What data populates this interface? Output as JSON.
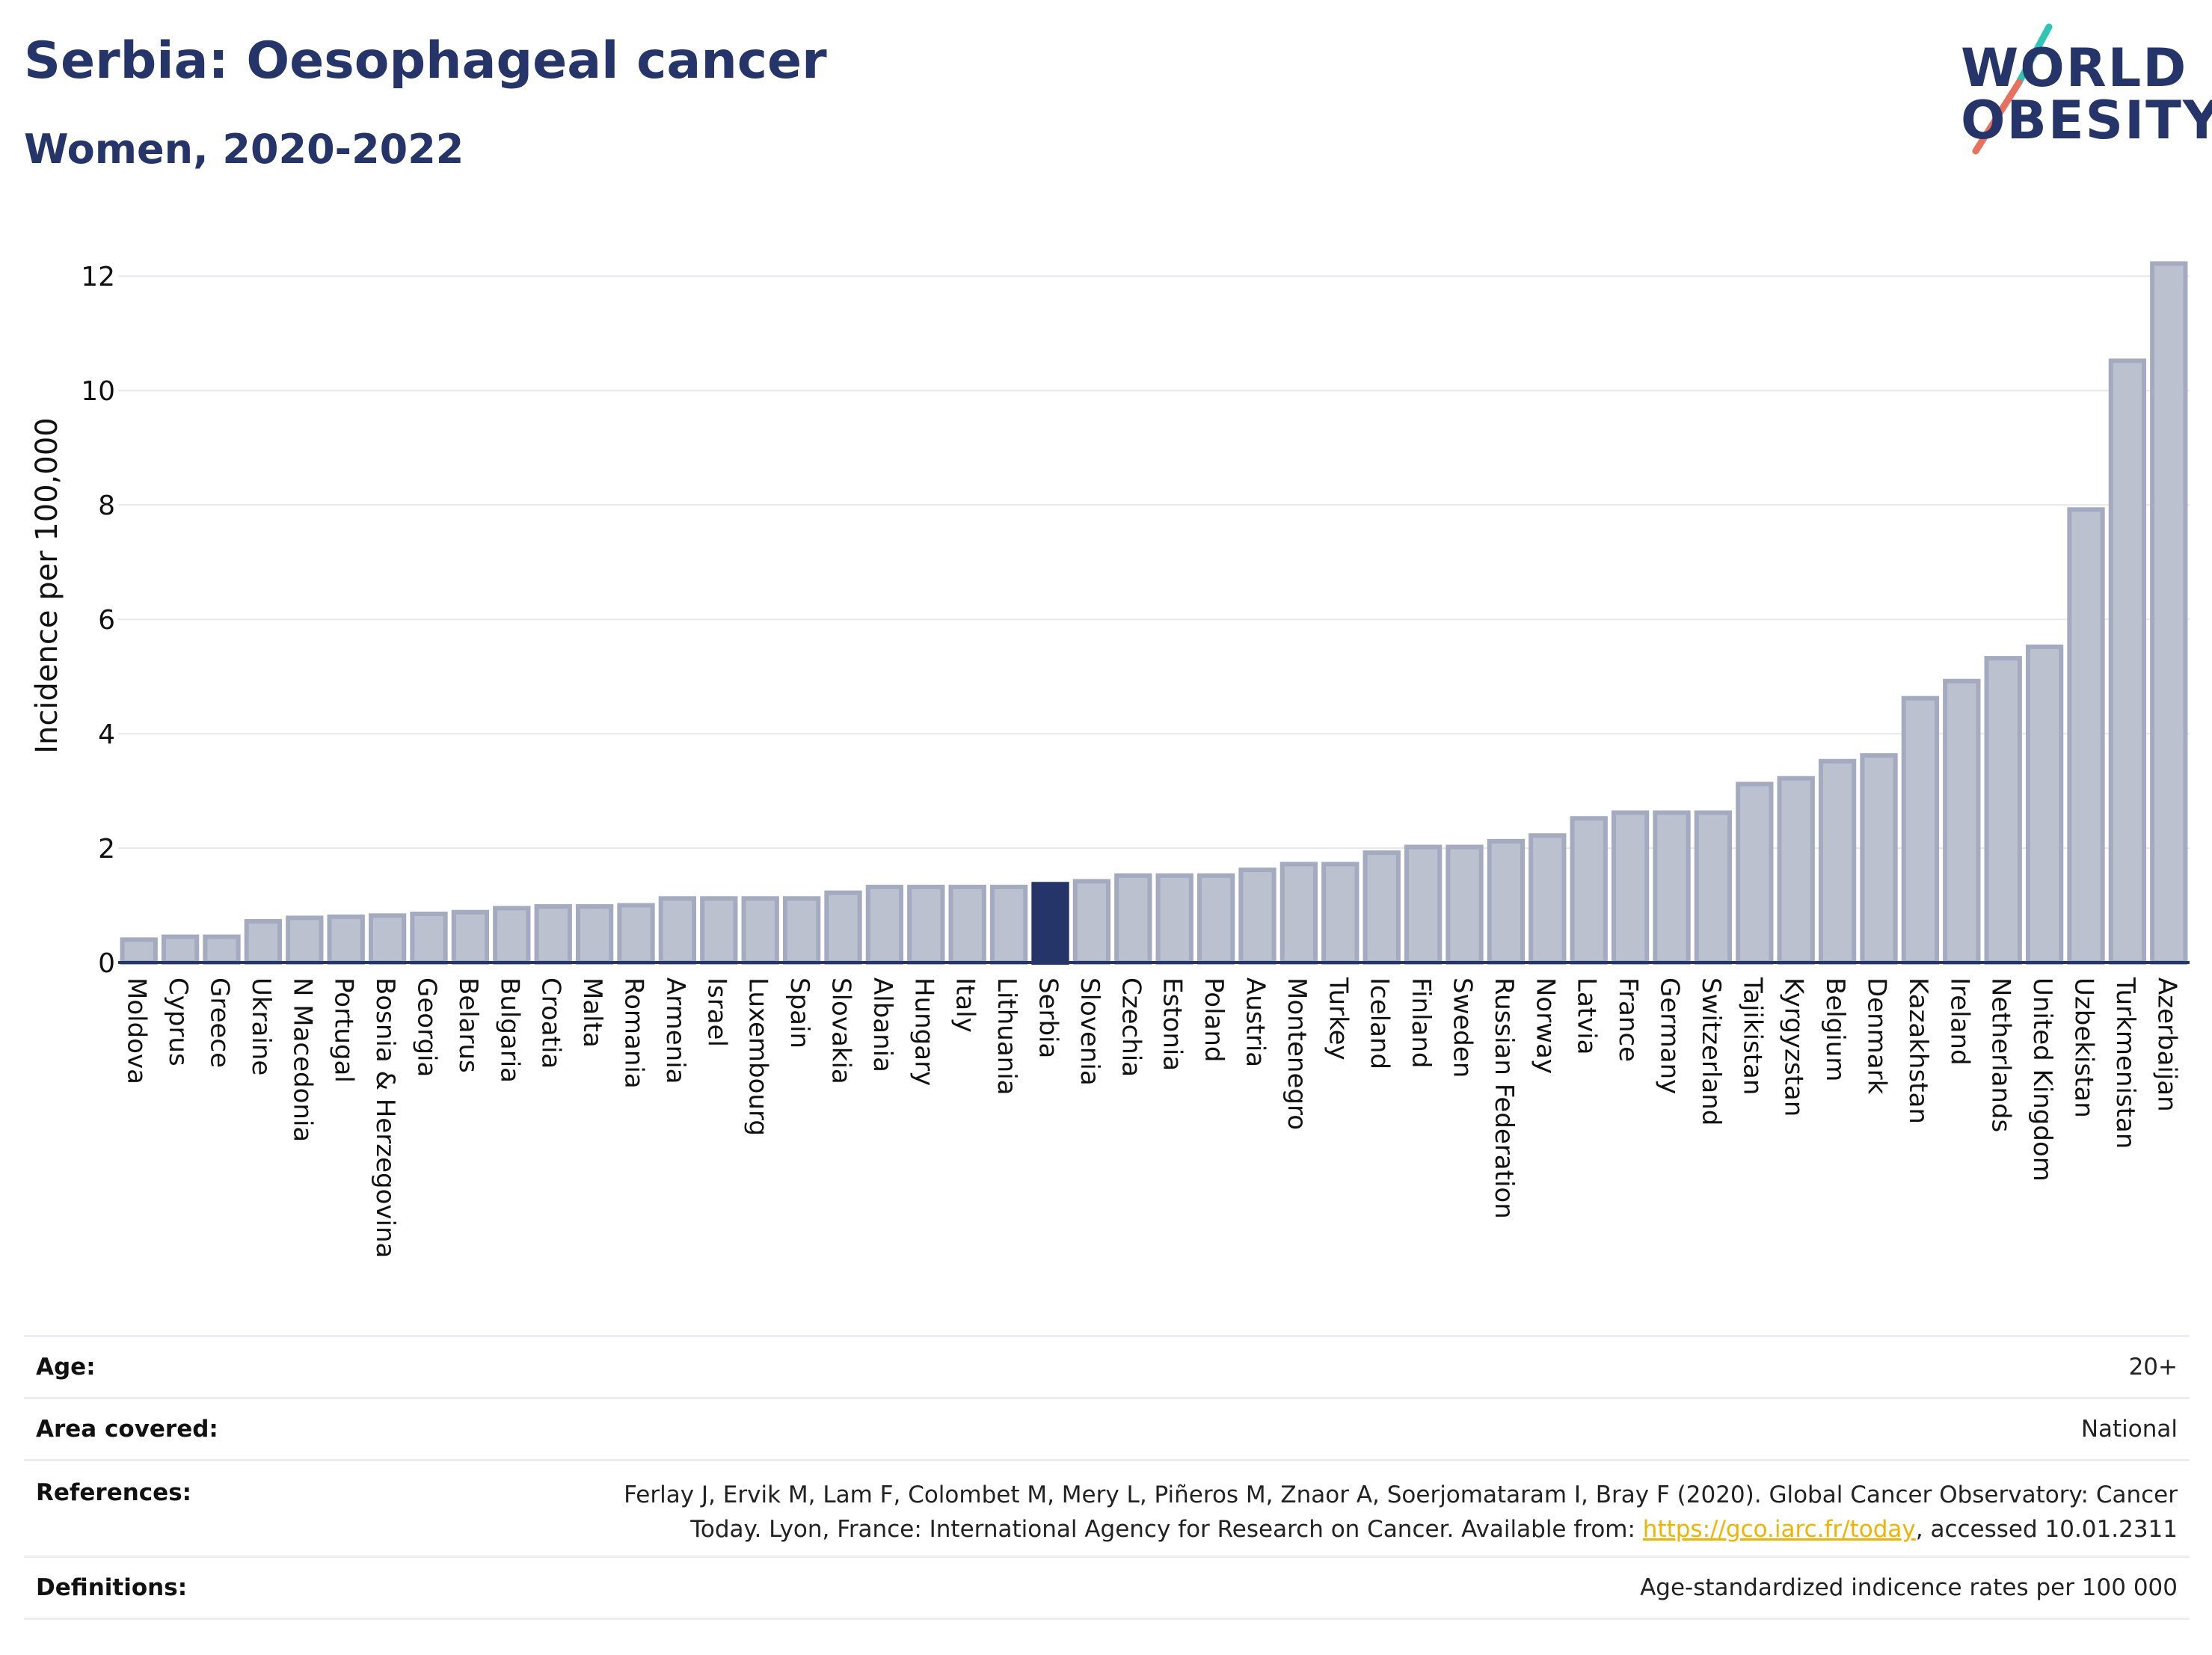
{
  "title": "Serbia: Oesophageal cancer",
  "subtitle": "Women, 2020-2022",
  "logo": {
    "line1": "WORLD",
    "line2": "OBESITY",
    "slash_colors": [
      "#2ec4b6",
      "#e8705e"
    ]
  },
  "colors": {
    "bar": "#bcc1d0",
    "bar_border": "#a4aac0",
    "highlight": "#263569",
    "grid": "#e6e8ee",
    "axis": "#263569",
    "text": "#111111"
  },
  "chart_data": {
    "type": "bar",
    "ylabel": "Incidence per 100,000",
    "ylim": [
      0,
      12.5
    ],
    "yticks": [
      0,
      2,
      4,
      6,
      8,
      10,
      12
    ],
    "highlight": "Serbia",
    "grid": true,
    "categories": [
      "Moldova",
      "Cyprus",
      "Greece",
      "Ukraine",
      "N Macedonia",
      "Portugal",
      "Bosnia & Herzegovina",
      "Georgia",
      "Belarus",
      "Bulgaria",
      "Croatia",
      "Malta",
      "Romania",
      "Armenia",
      "Israel",
      "Luxembourg",
      "Spain",
      "Slovakia",
      "Albania",
      "Hungary",
      "Italy",
      "Lithuania",
      "Serbia",
      "Slovenia",
      "Czechia",
      "Estonia",
      "Poland",
      "Austria",
      "Montenegro",
      "Turkey",
      "Iceland",
      "Finland",
      "Sweden",
      "Russian Federation",
      "Norway",
      "Latvia",
      "France",
      "Germany",
      "Switzerland",
      "Tajikistan",
      "Kyrgyzstan",
      "Belgium",
      "Denmark",
      "Kazakhstan",
      "Ireland",
      "Netherlands",
      "United Kingdom",
      "Uzbekistan",
      "Turkmenistan",
      "Azerbaijan"
    ],
    "values": [
      0.4,
      0.45,
      0.45,
      0.72,
      0.78,
      0.8,
      0.82,
      0.85,
      0.88,
      0.95,
      0.98,
      0.98,
      1.0,
      1.12,
      1.12,
      1.12,
      1.12,
      1.22,
      1.32,
      1.32,
      1.32,
      1.32,
      1.37,
      1.42,
      1.52,
      1.52,
      1.52,
      1.62,
      1.72,
      1.72,
      1.92,
      2.02,
      2.02,
      2.12,
      2.22,
      2.52,
      2.62,
      2.62,
      2.62,
      3.12,
      3.22,
      3.52,
      3.62,
      4.62,
      4.92,
      5.32,
      5.52,
      7.92,
      10.52,
      12.22
    ]
  },
  "meta": {
    "age_label": "Age:",
    "age_value": "20+",
    "area_label": "Area covered:",
    "area_value": "National",
    "refs_label": "References:",
    "refs_text1": "Ferlay J, Ervik M, Lam F, Colombet M, Mery L, Piñeros M, Znaor A, Soerjomataram I, Bray F (2020). Global Cancer Observatory: Cancer Today. Lyon, France: International Agency for Research on Cancer. Available from: ",
    "refs_link": "https://gco.iarc.fr/today",
    "refs_text2": ", accessed 10.01.2311",
    "defs_label": "Definitions:",
    "defs_value": "Age-standardized indicence rates per 100 000"
  }
}
